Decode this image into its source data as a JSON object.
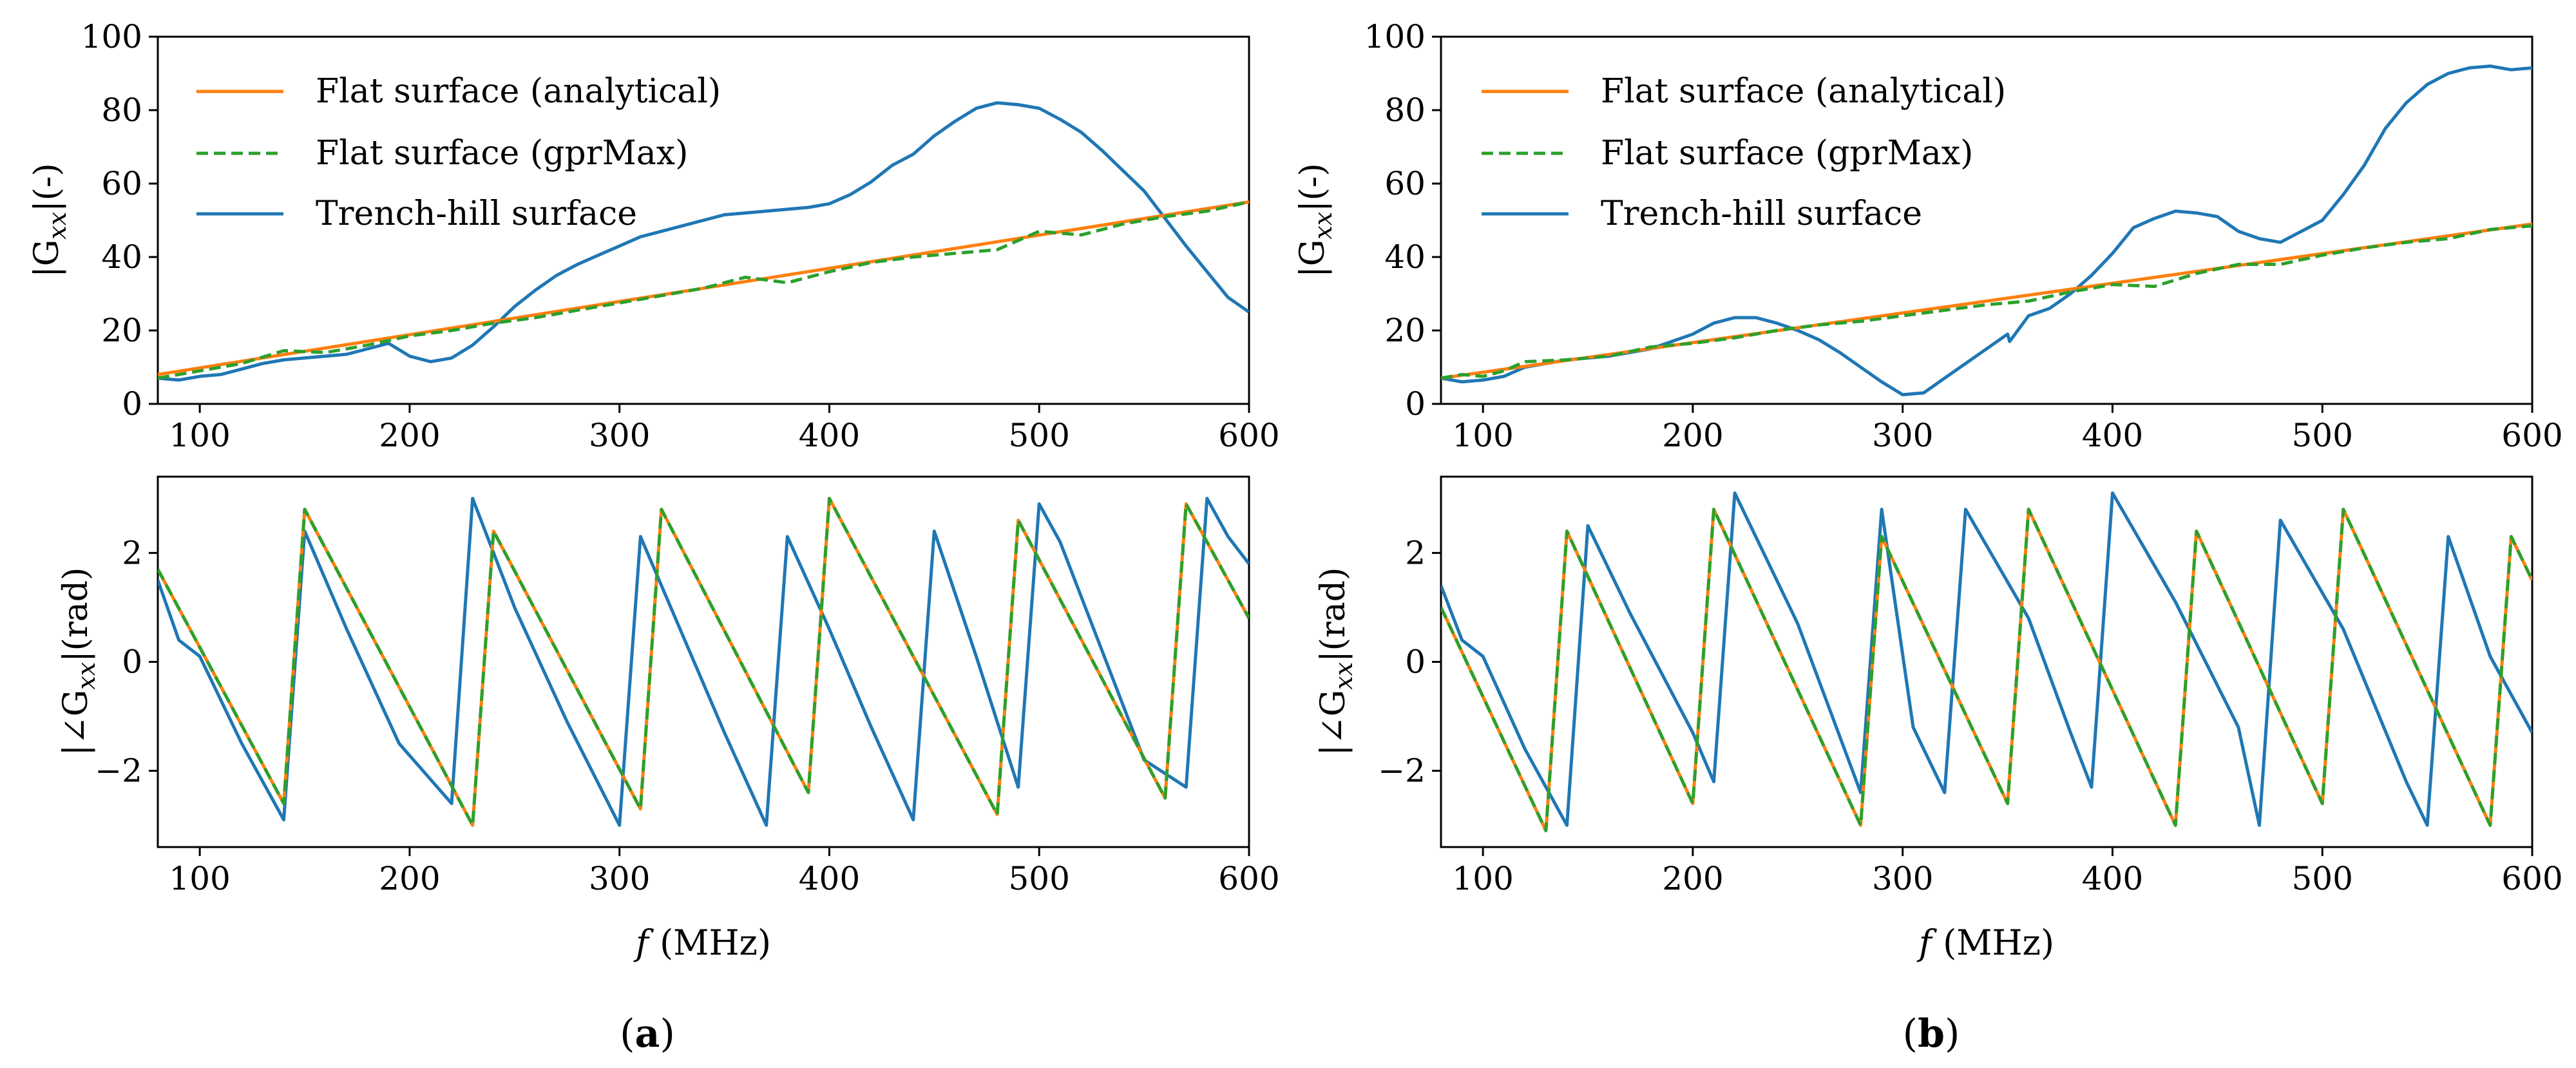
{
  "figure": {
    "captions": [
      "(a)",
      "(b)"
    ],
    "caption_letters": [
      "a",
      "b"
    ]
  },
  "colors": {
    "analytical": "#ff7f0e",
    "gprmax": "#2ca02c",
    "trench": "#1f77b4",
    "axes": "#000000"
  },
  "chart_data": [
    {
      "panel": "a",
      "type": "line",
      "ylabel_main": "|G",
      "ylabel_sub": "xx",
      "ylabel_suffix": "|(-)",
      "xlim": [
        80,
        600
      ],
      "ylim": [
        0,
        100
      ],
      "xticks": [
        "100",
        "200",
        "300",
        "400",
        "500",
        "600"
      ],
      "xtick_values": [
        100,
        200,
        300,
        400,
        500,
        600
      ],
      "yticks": [
        "0",
        "20",
        "40",
        "60",
        "80",
        "100"
      ],
      "ytick_values": [
        0,
        20,
        40,
        60,
        80,
        100
      ],
      "legend": {
        "placement": "top-left",
        "entries": [
          "Flat surface (analytical)",
          "Flat surface (gprMax)",
          "Trench-hill surface"
        ]
      },
      "series": [
        {
          "name": "Flat surface (analytical)",
          "style": "solid",
          "color_key": "analytical",
          "x": [
            80,
            600
          ],
          "y": [
            8,
            55
          ]
        },
        {
          "name": "Flat surface (gprMax)",
          "style": "dashed",
          "color_key": "gprmax",
          "x": [
            80,
            100,
            120,
            140,
            160,
            180,
            200,
            220,
            240,
            260,
            280,
            300,
            320,
            340,
            360,
            380,
            400,
            420,
            440,
            460,
            480,
            500,
            520,
            540,
            560,
            580,
            600
          ],
          "y": [
            7,
            9,
            11,
            14.5,
            14,
            16,
            18.5,
            20,
            22,
            23.5,
            25.5,
            27.5,
            29.5,
            31.5,
            34.5,
            33,
            36,
            38.5,
            40,
            41,
            42,
            47,
            46,
            49,
            51,
            52.5,
            55
          ]
        },
        {
          "name": "Trench-hill surface",
          "style": "solid",
          "color_key": "trench",
          "x": [
            80,
            90,
            100,
            110,
            120,
            130,
            140,
            150,
            160,
            170,
            180,
            190,
            200,
            210,
            220,
            230,
            240,
            250,
            260,
            270,
            280,
            290,
            300,
            310,
            320,
            330,
            340,
            350,
            360,
            370,
            380,
            390,
            400,
            410,
            420,
            430,
            440,
            450,
            460,
            470,
            480,
            490,
            500,
            510,
            520,
            530,
            540,
            550,
            560,
            570,
            580,
            590,
            600
          ],
          "y": [
            7,
            6.5,
            7.5,
            8,
            9.5,
            11,
            12,
            12.5,
            13,
            13.5,
            15,
            16.5,
            13,
            11.5,
            12.5,
            16,
            21,
            26.5,
            31,
            35,
            38,
            40.5,
            43,
            45.5,
            47,
            48.5,
            50,
            51.5,
            52,
            52.5,
            53,
            53.5,
            54.5,
            57,
            60.5,
            65,
            68,
            73,
            77,
            80.5,
            82,
            81.5,
            80.5,
            77.5,
            74,
            69,
            63.5,
            58,
            50.5,
            43,
            36,
            29,
            25
          ]
        }
      ]
    },
    {
      "panel": "a",
      "type": "line",
      "ylabel_main": "|∠G",
      "ylabel_sub": "xx",
      "ylabel_suffix": "|(rad)",
      "xlabel_var": "f",
      "xlabel_unit": " (MHz)",
      "xlim": [
        80,
        600
      ],
      "ylim": [
        -3.4,
        3.4
      ],
      "xticks": [
        "100",
        "200",
        "300",
        "400",
        "500",
        "600"
      ],
      "xtick_values": [
        100,
        200,
        300,
        400,
        500,
        600
      ],
      "yticks": [
        "2",
        "0",
        "−2"
      ],
      "ytick_values": [
        2,
        0,
        -2
      ],
      "series": [
        {
          "name": "Flat surface (analytical)",
          "style": "solid",
          "color_key": "analytical",
          "x": [
            80,
            140,
            150,
            230,
            240,
            310,
            320,
            390,
            400,
            480,
            490,
            560,
            570,
            600
          ],
          "y": [
            1.7,
            -2.6,
            2.8,
            -3.0,
            2.4,
            -2.7,
            2.8,
            -2.4,
            3.0,
            -2.8,
            2.6,
            -2.5,
            2.9,
            0.8
          ]
        },
        {
          "name": "Flat surface (gprMax)",
          "style": "dashed",
          "color_key": "gprmax",
          "x": [
            80,
            140,
            150,
            230,
            240,
            310,
            320,
            390,
            400,
            480,
            490,
            560,
            570,
            600
          ],
          "y": [
            1.7,
            -2.6,
            2.8,
            -3.0,
            2.4,
            -2.7,
            2.8,
            -2.4,
            3.0,
            -2.8,
            2.6,
            -2.5,
            2.9,
            0.8
          ]
        },
        {
          "name": "Trench-hill surface",
          "style": "solid",
          "color_key": "trench",
          "x": [
            80,
            90,
            100,
            120,
            140,
            150,
            170,
            195,
            220,
            230,
            250,
            275,
            300,
            310,
            330,
            350,
            370,
            380,
            400,
            420,
            440,
            450,
            470,
            490,
            500,
            510,
            530,
            550,
            570,
            580,
            590,
            600
          ],
          "y": [
            1.5,
            0.4,
            0.1,
            -1.5,
            -2.9,
            2.4,
            0.6,
            -1.5,
            -2.6,
            3.0,
            1.0,
            -1.1,
            -3.0,
            2.3,
            0.5,
            -1.3,
            -3.0,
            2.3,
            0.6,
            -1.2,
            -2.9,
            2.4,
            0.1,
            -2.3,
            2.9,
            2.2,
            0.2,
            -1.8,
            -2.3,
            3.0,
            2.3,
            1.8
          ]
        }
      ]
    },
    {
      "panel": "b",
      "type": "line",
      "ylabel_main": "|G",
      "ylabel_sub": "xx",
      "ylabel_suffix": "|(-)",
      "xlim": [
        80,
        600
      ],
      "ylim": [
        0,
        100
      ],
      "xticks": [
        "100",
        "200",
        "300",
        "400",
        "500",
        "600"
      ],
      "xtick_values": [
        100,
        200,
        300,
        400,
        500,
        600
      ],
      "yticks": [
        "0",
        "20",
        "40",
        "60",
        "80",
        "100"
      ],
      "ytick_values": [
        0,
        20,
        40,
        60,
        80,
        100
      ],
      "legend": {
        "placement": "top-left",
        "entries": [
          "Flat surface (analytical)",
          "Flat surface (gprMax)",
          "Trench-hill surface"
        ]
      },
      "series": [
        {
          "name": "Flat surface (analytical)",
          "style": "solid",
          "color_key": "analytical",
          "x": [
            80,
            600
          ],
          "y": [
            7,
            49
          ]
        },
        {
          "name": "Flat surface (gprMax)",
          "style": "dashed",
          "color_key": "gprmax",
          "x": [
            80,
            90,
            100,
            110,
            120,
            140,
            160,
            180,
            200,
            220,
            240,
            260,
            280,
            300,
            320,
            340,
            360,
            380,
            400,
            420,
            440,
            460,
            480,
            500,
            520,
            540,
            560,
            580,
            600
          ],
          "y": [
            7,
            8,
            7.5,
            9,
            11.5,
            12,
            13,
            15.5,
            16.5,
            18,
            20,
            21.5,
            22.5,
            24,
            25.5,
            27,
            28,
            30.5,
            32.5,
            32,
            35.5,
            38,
            38,
            40.5,
            42.5,
            44,
            45,
            47.5,
            48.5
          ]
        },
        {
          "name": "Trench-hill surface",
          "style": "solid",
          "color_key": "trench",
          "x": [
            80,
            90,
            100,
            110,
            120,
            130,
            140,
            150,
            160,
            170,
            180,
            190,
            200,
            210,
            220,
            230,
            240,
            250,
            260,
            270,
            280,
            290,
            300,
            310,
            320,
            330,
            340,
            350,
            351,
            360,
            370,
            380,
            390,
            400,
            410,
            420,
            430,
            440,
            450,
            460,
            470,
            480,
            490,
            500,
            510,
            520,
            530,
            540,
            550,
            560,
            570,
            580,
            590,
            600
          ],
          "y": [
            7,
            6,
            6.5,
            7.5,
            10,
            11,
            12,
            12.5,
            13,
            14,
            15,
            17,
            19,
            22,
            23.5,
            23.5,
            22,
            20,
            17.5,
            14,
            10,
            6,
            2.5,
            3,
            7,
            11,
            15,
            19,
            17,
            24,
            26,
            30,
            35,
            41,
            48,
            50.5,
            52.5,
            52,
            51,
            47,
            45,
            44,
            47,
            50,
            57,
            65,
            75,
            82,
            87,
            90,
            91.5,
            92,
            91,
            91.5
          ]
        }
      ]
    },
    {
      "panel": "b",
      "type": "line",
      "ylabel_main": "|∠G",
      "ylabel_sub": "xx",
      "ylabel_suffix": "|(rad)",
      "xlabel_var": "f",
      "xlabel_unit": " (MHz)",
      "xlim": [
        80,
        600
      ],
      "ylim": [
        -3.4,
        3.4
      ],
      "xticks": [
        "100",
        "200",
        "300",
        "400",
        "500",
        "600"
      ],
      "xtick_values": [
        100,
        200,
        300,
        400,
        500,
        600
      ],
      "yticks": [
        "2",
        "0",
        "−2"
      ],
      "ytick_values": [
        2,
        0,
        -2
      ],
      "series": [
        {
          "name": "Flat surface (analytical)",
          "style": "solid",
          "color_key": "analytical",
          "x": [
            80,
            130,
            140,
            200,
            210,
            280,
            290,
            350,
            360,
            430,
            440,
            500,
            510,
            580,
            590,
            600
          ],
          "y": [
            1.0,
            -3.1,
            2.4,
            -2.6,
            2.8,
            -3.0,
            2.3,
            -2.6,
            2.8,
            -3.0,
            2.4,
            -2.6,
            2.8,
            -3.0,
            2.3,
            1.5
          ]
        },
        {
          "name": "Flat surface (gprMax)",
          "style": "dashed",
          "color_key": "gprmax",
          "x": [
            80,
            130,
            140,
            200,
            210,
            280,
            290,
            350,
            360,
            430,
            440,
            500,
            510,
            580,
            590,
            600
          ],
          "y": [
            1.0,
            -3.1,
            2.4,
            -2.6,
            2.8,
            -3.0,
            2.3,
            -2.6,
            2.8,
            -3.0,
            2.4,
            -2.6,
            2.8,
            -3.0,
            2.3,
            1.5
          ]
        },
        {
          "name": "Trench-hill surface",
          "style": "solid",
          "color_key": "trench",
          "x": [
            80,
            90,
            100,
            120,
            140,
            150,
            170,
            200,
            210,
            220,
            250,
            280,
            290,
            305,
            320,
            330,
            360,
            380,
            390,
            400,
            430,
            460,
            470,
            480,
            510,
            540,
            550,
            560,
            580,
            600
          ],
          "y": [
            1.4,
            0.4,
            0.1,
            -1.6,
            -3.0,
            2.5,
            0.9,
            -1.3,
            -2.2,
            3.1,
            0.7,
            -2.4,
            2.8,
            -1.2,
            -2.4,
            2.8,
            0.8,
            -1.3,
            -2.3,
            3.1,
            1.1,
            -1.2,
            -3.0,
            2.6,
            0.6,
            -2.2,
            -3.0,
            2.3,
            0.1,
            -1.3
          ]
        }
      ]
    }
  ]
}
